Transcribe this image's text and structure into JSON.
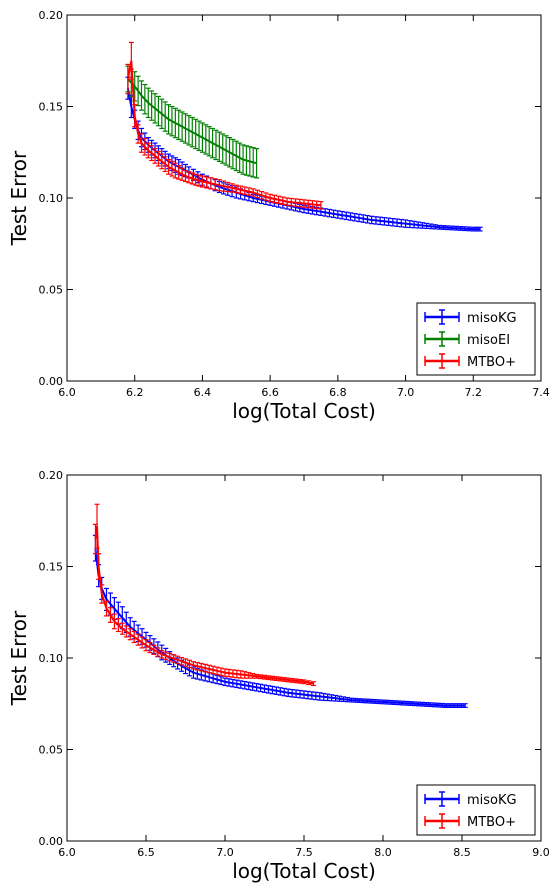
{
  "chart_data": [
    {
      "type": "line",
      "xlabel": "log(Total Cost)",
      "ylabel": "Test Error",
      "xlim": [
        6.0,
        7.4
      ],
      "ylim": [
        0.0,
        0.2
      ],
      "xticks": [
        "6.0",
        "6.2",
        "6.4",
        "6.6",
        "6.8",
        "7.0",
        "7.2",
        "7.4"
      ],
      "yticks": [
        "0.00",
        "0.05",
        "0.10",
        "0.15",
        "0.20"
      ],
      "legend_position": "lower-right",
      "error_bars": true,
      "series": [
        {
          "name": "misoKG",
          "color": "#0000ff",
          "x": [
            6.18,
            6.19,
            6.2,
            6.21,
            6.22,
            6.24,
            6.26,
            6.28,
            6.3,
            6.33,
            6.36,
            6.4,
            6.45,
            6.5,
            6.55,
            6.6,
            6.65,
            6.7,
            6.8,
            6.9,
            7.0,
            7.1,
            7.2,
            7.22
          ],
          "y": [
            0.16,
            0.15,
            0.143,
            0.137,
            0.133,
            0.129,
            0.126,
            0.123,
            0.12,
            0.117,
            0.114,
            0.11,
            0.106,
            0.103,
            0.1,
            0.098,
            0.096,
            0.094,
            0.091,
            0.088,
            0.086,
            0.084,
            0.083,
            0.083
          ],
          "err": [
            0.006,
            0.006,
            0.005,
            0.005,
            0.005,
            0.004,
            0.004,
            0.004,
            0.004,
            0.004,
            0.003,
            0.003,
            0.003,
            0.003,
            0.002,
            0.002,
            0.002,
            0.002,
            0.002,
            0.002,
            0.002,
            0.001,
            0.001,
            0.001
          ]
        },
        {
          "name": "misoEI",
          "color": "#008000",
          "x": [
            6.18,
            6.2,
            6.22,
            6.24,
            6.26,
            6.28,
            6.3,
            6.32,
            6.34,
            6.36,
            6.38,
            6.4,
            6.42,
            6.44,
            6.46,
            6.48,
            6.5,
            6.52,
            6.54,
            6.56
          ],
          "y": [
            0.165,
            0.161,
            0.156,
            0.152,
            0.149,
            0.146,
            0.143,
            0.141,
            0.139,
            0.137,
            0.135,
            0.133,
            0.131,
            0.129,
            0.127,
            0.125,
            0.123,
            0.121,
            0.12,
            0.119
          ],
          "err": [
            0.007,
            0.008,
            0.008,
            0.008,
            0.008,
            0.008,
            0.008,
            0.008,
            0.008,
            0.008,
            0.008,
            0.008,
            0.008,
            0.008,
            0.008,
            0.008,
            0.008,
            0.008,
            0.008,
            0.008
          ]
        },
        {
          "name": "MTBO+",
          "color": "#ff0000",
          "x": [
            6.18,
            6.19,
            6.2,
            6.21,
            6.22,
            6.24,
            6.26,
            6.28,
            6.3,
            6.32,
            6.35,
            6.38,
            6.4,
            6.45,
            6.5,
            6.55,
            6.6,
            6.65,
            6.7,
            6.75
          ],
          "y": [
            0.165,
            0.175,
            0.145,
            0.135,
            0.13,
            0.126,
            0.123,
            0.12,
            0.117,
            0.115,
            0.112,
            0.11,
            0.109,
            0.107,
            0.105,
            0.103,
            0.1,
            0.098,
            0.097,
            0.096
          ],
          "err": [
            0.008,
            0.01,
            0.006,
            0.005,
            0.005,
            0.004,
            0.004,
            0.004,
            0.004,
            0.004,
            0.003,
            0.003,
            0.003,
            0.003,
            0.002,
            0.002,
            0.002,
            0.002,
            0.002,
            0.002
          ]
        }
      ]
    },
    {
      "type": "line",
      "xlabel": "log(Total Cost)",
      "ylabel": "Test Error",
      "xlim": [
        6.0,
        9.0
      ],
      "ylim": [
        0.0,
        0.2
      ],
      "xticks": [
        "6.0",
        "6.5",
        "7.0",
        "7.5",
        "8.0",
        "8.5",
        "9.0"
      ],
      "yticks": [
        "0.00",
        "0.05",
        "0.10",
        "0.15",
        "0.20"
      ],
      "legend_position": "lower-right",
      "error_bars": true,
      "series": [
        {
          "name": "misoKG",
          "color": "#0000ff",
          "x": [
            6.18,
            6.2,
            6.22,
            6.25,
            6.3,
            6.35,
            6.4,
            6.5,
            6.6,
            6.7,
            6.8,
            7.0,
            7.2,
            7.4,
            7.6,
            7.8,
            8.0,
            8.2,
            8.4,
            8.52
          ],
          "y": [
            0.16,
            0.145,
            0.138,
            0.132,
            0.127,
            0.122,
            0.117,
            0.11,
            0.103,
            0.097,
            0.092,
            0.087,
            0.084,
            0.081,
            0.079,
            0.077,
            0.076,
            0.075,
            0.074,
            0.074
          ],
          "err": [
            0.007,
            0.006,
            0.006,
            0.006,
            0.006,
            0.006,
            0.005,
            0.004,
            0.004,
            0.003,
            0.003,
            0.002,
            0.002,
            0.002,
            0.002,
            0.001,
            0.001,
            0.001,
            0.001,
            0.001
          ]
        },
        {
          "name": "MTBO+",
          "color": "#ff0000",
          "x": [
            6.18,
            6.19,
            6.2,
            6.22,
            6.25,
            6.3,
            6.35,
            6.4,
            6.5,
            6.6,
            6.7,
            6.8,
            6.9,
            7.0,
            7.1,
            7.2,
            7.3,
            7.4,
            7.5,
            7.56
          ],
          "y": [
            0.165,
            0.172,
            0.15,
            0.135,
            0.127,
            0.12,
            0.116,
            0.113,
            0.107,
            0.102,
            0.099,
            0.096,
            0.094,
            0.092,
            0.091,
            0.09,
            0.089,
            0.088,
            0.087,
            0.086
          ],
          "err": [
            0.008,
            0.012,
            0.007,
            0.005,
            0.004,
            0.004,
            0.003,
            0.003,
            0.003,
            0.002,
            0.002,
            0.002,
            0.002,
            0.002,
            0.002,
            0.001,
            0.001,
            0.001,
            0.001,
            0.001
          ]
        }
      ]
    }
  ]
}
